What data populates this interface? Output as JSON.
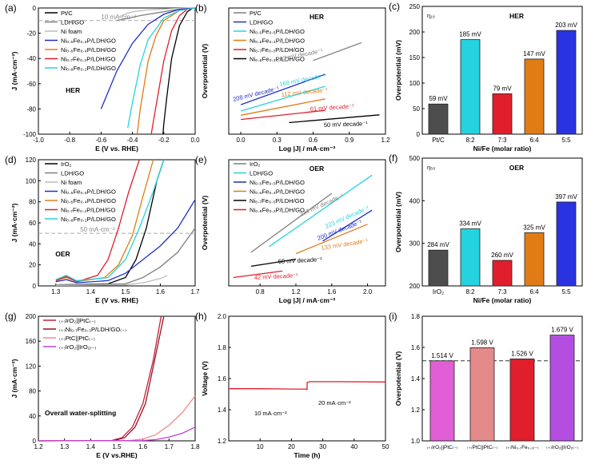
{
  "colors": {
    "pt": "#000000",
    "ldh": "#7f7f7f",
    "nifoam": "#bdbdbd",
    "c55": "#1f2ec9",
    "c64": "#e07c15",
    "c73": "#e01e2c",
    "c82": "#24d3df",
    "iro2": "#000000",
    "pair1": "#c41f3b",
    "pair2": "#9b0f1d",
    "pair3": "#f08a8a",
    "pair4": "#c03fd6"
  },
  "chart_data": [
    {
      "panel": "(a)",
      "type": "line",
      "title": "HER",
      "xlabel": "E (V vs. RHE)",
      "ylabel": "J (mA·cm⁻²)",
      "xlim": [
        -1.0,
        0.0
      ],
      "ylim": [
        -100,
        0
      ],
      "xticks": [
        -1.0,
        -0.8,
        -0.6,
        -0.4,
        -0.2,
        0.0
      ],
      "yticks": [
        -100,
        -80,
        -60,
        -40,
        -20,
        0
      ],
      "xtick_labels": [
        "-1.0",
        "-0.8",
        "-0.6",
        "-0.4",
        "-0.2",
        "0.0"
      ],
      "ytick_labels": [
        "-100",
        "-80",
        "-60",
        "-40",
        "-20",
        "0"
      ],
      "ref_line": {
        "y": -10,
        "label": "10 mA·cm⁻²"
      },
      "legend": [
        "Pt/C",
        "LDH/GO",
        "Ni foam",
        "Ni₀.₅Fe₀.₅P/LDH/GO",
        "Ni₀.₆Fe₀.₄P/LDH/GO",
        "Ni₀.₇Fe₀.₃P/LDH/GO",
        "Ni₀.₈Fe₀.₂P/LDH/GO"
      ],
      "series": [
        {
          "color": "#000000",
          "x": [
            0,
            -0.02,
            -0.05,
            -0.1,
            -0.15,
            -0.18,
            -0.2,
            -0.205
          ],
          "y": [
            0,
            -0.5,
            -3,
            -14,
            -40,
            -70,
            -92,
            -100
          ]
        },
        {
          "color": "#7f7f7f",
          "x": [
            0,
            -0.1,
            -0.2,
            -0.3,
            -0.35,
            -0.42,
            -0.5
          ],
          "y": [
            0,
            -1,
            -3,
            -5,
            -6,
            -8,
            -10
          ]
        },
        {
          "color": "#bdbdbd",
          "x": [
            0,
            -0.15,
            -0.3,
            -0.4,
            -0.45,
            -0.5
          ],
          "y": [
            0,
            -0.5,
            -1.5,
            -3,
            -5,
            -8
          ]
        },
        {
          "color": "#1f2ec9",
          "x": [
            0,
            -0.1,
            -0.2,
            -0.3,
            -0.4,
            -0.5,
            -0.6
          ],
          "y": [
            0,
            -1,
            -5,
            -13,
            -28,
            -50,
            -80
          ]
        },
        {
          "color": "#e07c15",
          "x": [
            0,
            -0.1,
            -0.2,
            -0.25,
            -0.3,
            -0.35,
            -0.37
          ],
          "y": [
            0,
            -2,
            -10,
            -22,
            -42,
            -80,
            -100
          ]
        },
        {
          "color": "#e01e2c",
          "x": [
            0,
            -0.05,
            -0.1,
            -0.15,
            -0.2,
            -0.25,
            -0.28
          ],
          "y": [
            0,
            -1,
            -6,
            -18,
            -42,
            -78,
            -100
          ]
        },
        {
          "color": "#24d3df",
          "x": [
            0,
            -0.1,
            -0.2,
            -0.3,
            -0.35,
            -0.4,
            -0.43
          ],
          "y": [
            0,
            -2,
            -8,
            -25,
            -45,
            -75,
            -95
          ]
        }
      ]
    },
    {
      "panel": "(b)",
      "type": "line",
      "title": "HER",
      "xlabel": "Log |J| / mA·cm⁻²",
      "ylabel": "Overpotential (V)",
      "xlim": [
        -0.1,
        1.2
      ],
      "ylim": [
        -0.05,
        0.55
      ],
      "xticks": [
        0.0,
        0.3,
        0.6,
        0.9,
        1.2
      ],
      "xtick_labels": [
        "0.0",
        "0.3",
        "0.6",
        "0.9",
        "1.2"
      ],
      "legend": [
        "Pt/C",
        "LDH/GO",
        "Ni₀.₅Fe₀.₅P/LDH/GO",
        "Ni₀.₆Fe₀.₄P/LDH/GO",
        "Ni₀.₇Fe₀.₃P/LDH/GO",
        "Ni₀.₈Fe₀.₂P/LDH/GO"
      ],
      "annotations": [
        "213 mV decade⁻¹",
        "208 mV decade⁻¹",
        "168 mV decade⁻¹",
        "112 mV decade⁻¹",
        "61 mV decade⁻¹",
        "50 mV decade⁻¹"
      ],
      "series": [
        {
          "color": "#7f7f7f",
          "x": [
            0.6,
            1.0
          ],
          "y": [
            0.3,
            0.385
          ]
        },
        {
          "color": "#1f2ec9",
          "x": [
            0.0,
            0.7
          ],
          "y": [
            0.09,
            0.235
          ]
        },
        {
          "color": "#24d3df",
          "x": [
            0.0,
            0.7
          ],
          "y": [
            0.06,
            0.178
          ]
        },
        {
          "color": "#e07c15",
          "x": [
            0.0,
            0.7
          ],
          "y": [
            0.04,
            0.118
          ]
        },
        {
          "color": "#e01e2c",
          "x": [
            0.0,
            0.7
          ],
          "y": [
            0.02,
            0.063
          ]
        },
        {
          "color": "#000000",
          "x": [
            0.4,
            1.15
          ],
          "y": [
            0.005,
            0.042
          ]
        }
      ]
    },
    {
      "panel": "(c)",
      "type": "bar",
      "title": "HER",
      "corner_label": "η₁₀",
      "xlabel": "Ni/Fe (molar ratio)",
      "ylabel": "Overpotential (mV)",
      "ylim": [
        0,
        250
      ],
      "yticks": [
        0,
        50,
        100,
        150,
        200,
        250
      ],
      "ytick_labels": [
        "0",
        "50",
        "100",
        "150",
        "200",
        "250"
      ],
      "categories": [
        "Pt/C",
        "8:2",
        "7:3",
        "6:4",
        "5:5"
      ],
      "values": [
        59,
        185,
        79,
        147,
        203
      ],
      "value_labels": [
        "59 mV",
        "185 mV",
        "79 mV",
        "147 mV",
        "203 mV"
      ],
      "bar_colors": [
        "#4d4d4d",
        "#24d3df",
        "#e01e2c",
        "#e07c15",
        "#2a33e0"
      ]
    },
    {
      "panel": "(d)",
      "type": "line",
      "title": "OER",
      "xlabel": "E (V vs. RHE)",
      "ylabel": "J (mA·cm⁻²)",
      "xlim": [
        1.25,
        1.7
      ],
      "ylim": [
        0,
        120
      ],
      "xticks": [
        1.3,
        1.4,
        1.5,
        1.6,
        1.7
      ],
      "xtick_labels": [
        "1.3",
        "1.4",
        "1.5",
        "1.6",
        "1.7"
      ],
      "yticks": [
        0,
        20,
        40,
        60,
        80,
        100,
        120
      ],
      "ytick_labels": [
        "0",
        "20",
        "40",
        "60",
        "80",
        "100",
        "120"
      ],
      "ref_line": {
        "y": 50,
        "label": "50 mA·cm⁻²"
      },
      "legend": [
        "IrO₂",
        "LDH/GO",
        "Ni foam",
        "Ni₀.₅Fe₀.₅P/LDH/GO",
        "Ni₀.₆Fe₀.₄P/LDH/GO",
        "Ni₀.₇Fe₀.₃P/LDH/GO",
        "Ni₀.₈Fe₀.₂P/LDH/GO"
      ],
      "series": [
        {
          "color": "#000000",
          "x": [
            1.3,
            1.45,
            1.5,
            1.53,
            1.56,
            1.59,
            1.61
          ],
          "y": [
            1,
            2,
            8,
            25,
            55,
            100,
            120
          ]
        },
        {
          "color": "#7f7f7f",
          "x": [
            1.3,
            1.5,
            1.55,
            1.6,
            1.65,
            1.7
          ],
          "y": [
            1,
            2,
            8,
            18,
            32,
            55
          ]
        },
        {
          "color": "#bdbdbd",
          "x": [
            1.3,
            1.5,
            1.55,
            1.6,
            1.62
          ],
          "y": [
            0.5,
            1,
            3,
            7,
            10
          ]
        },
        {
          "color": "#1f2ec9",
          "x": [
            1.3,
            1.33,
            1.36,
            1.45,
            1.5,
            1.55,
            1.6,
            1.65,
            1.7
          ],
          "y": [
            4,
            6,
            3,
            5,
            12,
            25,
            38,
            55,
            82
          ]
        },
        {
          "color": "#e07c15",
          "x": [
            1.3,
            1.33,
            1.36,
            1.44,
            1.48,
            1.52,
            1.55,
            1.58
          ],
          "y": [
            5,
            8,
            4,
            8,
            20,
            48,
            85,
            120
          ]
        },
        {
          "color": "#e01e2c",
          "x": [
            1.3,
            1.33,
            1.36,
            1.42,
            1.45,
            1.48,
            1.51,
            1.54
          ],
          "y": [
            5,
            9,
            4,
            10,
            25,
            55,
            90,
            120
          ]
        },
        {
          "color": "#24d3df",
          "x": [
            1.3,
            1.33,
            1.36,
            1.45,
            1.5,
            1.54,
            1.58,
            1.61
          ],
          "y": [
            6,
            10,
            5,
            8,
            25,
            55,
            90,
            120
          ]
        }
      ]
    },
    {
      "panel": "(e)",
      "type": "line",
      "title": "OER",
      "xlabel": "Log |J| / mA·cm⁻²",
      "ylabel": "Overpotential (V)",
      "xlim": [
        0.45,
        2.2
      ],
      "ylim": [
        0.15,
        0.6
      ],
      "xticks": [
        0.8,
        1.2,
        1.6,
        2.0
      ],
      "xtick_labels": [
        "0.8",
        "1.2",
        "1.6",
        "2.0"
      ],
      "legend": [
        "IrO₂",
        "LDH/GO",
        "Ni₀.₅Fe₀.₅P/LDH/GO",
        "Ni₀.₆Fe₀.₄P/LDH/GO",
        "Ni₀.₇Fe₀.₃P/LDH/GO",
        "Ni₀.₈Fe₀.₂P/LDH/GO"
      ],
      "annotations": [
        "234 mV decade⁻¹",
        "223 mV decade⁻¹",
        "200 mV decade⁻¹",
        "133 mV decade⁻¹",
        "50 mV decade⁻¹",
        "42 mV decade⁻¹"
      ],
      "series": [
        {
          "color": "#7f7f7f",
          "x": [
            0.7,
            1.6
          ],
          "y": [
            0.27,
            0.48
          ]
        },
        {
          "color": "#24d3df",
          "x": [
            0.9,
            2.05
          ],
          "y": [
            0.29,
            0.545
          ]
        },
        {
          "color": "#1f2ec9",
          "x": [
            1.5,
            2.05
          ],
          "y": [
            0.31,
            0.42
          ]
        },
        {
          "color": "#e07c15",
          "x": [
            1.2,
            2.0
          ],
          "y": [
            0.265,
            0.37
          ]
        },
        {
          "color": "#000000",
          "x": [
            0.7,
            1.2
          ],
          "y": [
            0.22,
            0.245
          ]
        },
        {
          "color": "#e01e2c",
          "x": [
            0.5,
            1.05
          ],
          "y": [
            0.18,
            0.203
          ]
        }
      ]
    },
    {
      "panel": "(f)",
      "type": "bar",
      "title": "OER",
      "corner_label": "η₅₀",
      "xlabel": "Ni/Fe (molar ratio)",
      "ylabel": "Overpotential (mV)",
      "ylim": [
        200,
        500
      ],
      "yticks": [
        200,
        300,
        400,
        500
      ],
      "ytick_labels": [
        "200",
        "300",
        "400",
        "500"
      ],
      "categories": [
        "IrO₂",
        "8:2",
        "7:3",
        "6:4",
        "5:5"
      ],
      "values": [
        284,
        334,
        260,
        325,
        397
      ],
      "value_labels": [
        "284 mV",
        "334 mV",
        "260 mV",
        "325 mV",
        "397 mV"
      ],
      "bar_colors": [
        "#4d4d4d",
        "#24d3df",
        "#e01e2c",
        "#e07c15",
        "#2a33e0"
      ]
    },
    {
      "panel": "(g)",
      "type": "line",
      "title": "Overall water-splitting",
      "xlabel": "E (V vs.RHE)",
      "ylabel": "J (mA·cm⁻²)",
      "xlim": [
        1.2,
        1.8
      ],
      "ylim": [
        0,
        200
      ],
      "xticks": [
        1.2,
        1.3,
        1.4,
        1.5,
        1.6,
        1.7,
        1.8
      ],
      "xtick_labels": [
        "1.2",
        "1.3",
        "1.4",
        "1.5",
        "1.6",
        "1.7",
        "1.8"
      ],
      "yticks": [
        0,
        40,
        80,
        120,
        160,
        200
      ],
      "ytick_labels": [
        "0",
        "40",
        "80",
        "120",
        "160",
        "200"
      ],
      "legend": [
        "₍₊₎IrO₂||PtC₍₋₎",
        "₍₊₎Ni₀.₇Fe₀.₃P/LDH/GO₍₋₎",
        "₍₊₎PtC||PtC₍₋₎",
        "₍₊₎IrO₂||IrO₂₍₋₎"
      ],
      "series": [
        {
          "color": "#c41f3b",
          "x": [
            1.2,
            1.48,
            1.52,
            1.56,
            1.6,
            1.64,
            1.67
          ],
          "y": [
            0,
            0.5,
            5,
            22,
            60,
            130,
            200
          ]
        },
        {
          "color": "#9b0f1d",
          "x": [
            1.2,
            1.49,
            1.53,
            1.57,
            1.61,
            1.645,
            1.68
          ],
          "y": [
            0,
            0.5,
            5,
            22,
            60,
            130,
            200
          ]
        },
        {
          "color": "#f08a8a",
          "x": [
            1.2,
            1.55,
            1.6,
            1.65,
            1.7,
            1.75,
            1.8
          ],
          "y": [
            0,
            0.5,
            3,
            10,
            25,
            45,
            72
          ]
        },
        {
          "color": "#c03fd6",
          "x": [
            1.2,
            1.6,
            1.65,
            1.7,
            1.75,
            1.8
          ],
          "y": [
            0,
            0.5,
            2,
            6,
            12,
            22
          ]
        }
      ]
    },
    {
      "panel": "(h)",
      "type": "line",
      "xlabel": "Time (h)",
      "ylabel": "Voltage (V)",
      "xlim": [
        0,
        50
      ],
      "ylim": [
        1.2,
        2.0
      ],
      "xticks": [
        10,
        20,
        30,
        40,
        50
      ],
      "xtick_labels": [
        "10",
        "20",
        "30",
        "40",
        "50"
      ],
      "yticks": [
        1.2,
        1.4,
        1.6,
        1.8,
        2.0
      ],
      "ytick_labels": [
        "1.2",
        "1.4",
        "1.6",
        "1.8",
        "2.0"
      ],
      "annotations": [
        "10 mA·cm⁻²",
        "20 mA·cm⁻²"
      ],
      "series": [
        {
          "color": "#e01e2c",
          "x": [
            0,
            10,
            20,
            25,
            25,
            26,
            35,
            50
          ],
          "y": [
            1.535,
            1.535,
            1.533,
            1.532,
            1.575,
            1.58,
            1.58,
            1.578
          ]
        }
      ]
    },
    {
      "panel": "(i)",
      "type": "bar",
      "ylabel": "Overpotential (V)",
      "ylim": [
        1.0,
        1.8
      ],
      "yticks": [
        1.0,
        1.2,
        1.4,
        1.6,
        1.8
      ],
      "ytick_labels": [
        "1.0",
        "1.2",
        "1.4",
        "1.6",
        "1.8"
      ],
      "categories": [
        "₍₊₎IrO₂||PtC₍₋₎",
        "₍₊₎PtC||PtC₍₋₎",
        "₍₊₎Ni₀.₇Fe₀.₃₍₋₎",
        "₍₊₎IrO₂||IrO₂₍₋₎"
      ],
      "values": [
        1.514,
        1.598,
        1.526,
        1.679
      ],
      "value_labels": [
        "1.514 V",
        "1.598 V",
        "1.526 V",
        "1.679 V"
      ],
      "ref_line": {
        "y": 1.514
      },
      "bar_colors": [
        "#e15fd6",
        "#e58a8a",
        "#e01e2c",
        "#b44ee0"
      ]
    }
  ]
}
